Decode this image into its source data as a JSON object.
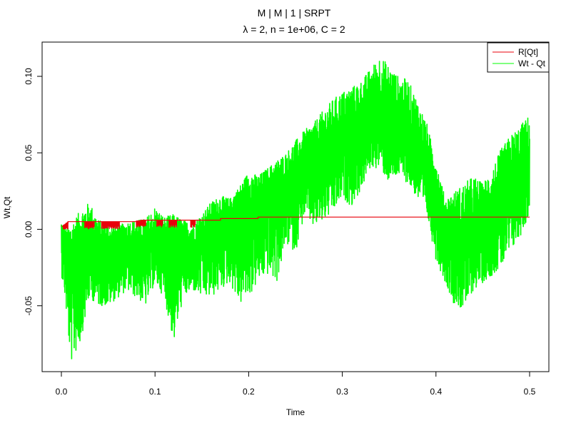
{
  "chart_data": {
    "type": "line",
    "title": "M | M | 1 | SRPT",
    "subtitle_prefix": "λ",
    "subtitle_rest": " = 2, n = 1e+06, C = 2",
    "xlabel": "Time",
    "ylabel": "Wt,Qt",
    "xlim": [
      0.0,
      0.5
    ],
    "ylim": [
      -0.087,
      0.114
    ],
    "x_ticks": [
      0.0,
      0.1,
      0.2,
      0.3,
      0.4,
      0.5
    ],
    "x_tick_labels": [
      "0.0",
      "0.1",
      "0.2",
      "0.3",
      "0.4",
      "0.5"
    ],
    "y_ticks": [
      -0.05,
      0.0,
      0.05,
      0.1
    ],
    "y_tick_labels": [
      "-0.05",
      "0.00",
      "0.05",
      "0.10"
    ],
    "grid": false,
    "legend_position": "top-right",
    "series": [
      {
        "name": "R[Qt]",
        "color": "#e8000b",
        "style": "step",
        "x": [
          0.0,
          0.005,
          0.007,
          0.03,
          0.045,
          0.07,
          0.085,
          0.1,
          0.12,
          0.135,
          0.15,
          0.17,
          0.2,
          0.21,
          0.25,
          0.3,
          0.4,
          0.5
        ],
        "y": [
          0.002,
          0.004,
          0.005,
          0.005,
          0.005,
          0.005,
          0.006,
          0.006,
          0.006,
          0.006,
          0.006,
          0.007,
          0.007,
          0.008,
          0.008,
          0.008,
          0.008,
          0.008
        ],
        "dip_intervals": [
          [
            0.002,
            0.007
          ],
          [
            0.025,
            0.035
          ],
          [
            0.043,
            0.062
          ],
          [
            0.08,
            0.09
          ],
          [
            0.102,
            0.108
          ],
          [
            0.115,
            0.123
          ],
          [
            0.138,
            0.143
          ]
        ]
      },
      {
        "name": "Wt - Qt",
        "color": "#00ff00",
        "style": "noisy-band",
        "x": [
          0.0,
          0.003,
          0.006,
          0.01,
          0.02,
          0.03,
          0.04,
          0.05,
          0.06,
          0.07,
          0.08,
          0.09,
          0.1,
          0.11,
          0.12,
          0.13,
          0.14,
          0.15,
          0.16,
          0.17,
          0.18,
          0.19,
          0.2,
          0.21,
          0.22,
          0.23,
          0.24,
          0.25,
          0.26,
          0.27,
          0.28,
          0.29,
          0.3,
          0.31,
          0.32,
          0.33,
          0.34,
          0.35,
          0.36,
          0.37,
          0.38,
          0.39,
          0.4,
          0.41,
          0.42,
          0.43,
          0.44,
          0.45,
          0.46,
          0.47,
          0.48,
          0.49,
          0.5
        ],
        "upper": [
          0.004,
          0.002,
          0.0,
          0.004,
          0.012,
          0.018,
          0.006,
          0.004,
          0.002,
          0.005,
          0.006,
          0.007,
          0.015,
          0.008,
          0.01,
          0.006,
          0.004,
          0.01,
          0.018,
          0.022,
          0.02,
          0.028,
          0.038,
          0.035,
          0.04,
          0.045,
          0.05,
          0.058,
          0.065,
          0.07,
          0.078,
          0.085,
          0.09,
          0.093,
          0.097,
          0.105,
          0.114,
          0.107,
          0.1,
          0.098,
          0.085,
          0.07,
          0.045,
          0.02,
          0.025,
          0.03,
          0.035,
          0.03,
          0.04,
          0.053,
          0.062,
          0.068,
          0.075
        ],
        "center": [
          0.0,
          -0.01,
          -0.02,
          -0.025,
          -0.015,
          -0.01,
          -0.015,
          -0.02,
          -0.015,
          -0.012,
          -0.01,
          -0.015,
          -0.01,
          -0.012,
          -0.012,
          -0.015,
          -0.012,
          -0.005,
          0.0,
          0.005,
          0.008,
          0.012,
          0.015,
          0.017,
          0.022,
          0.026,
          0.03,
          0.035,
          0.04,
          0.045,
          0.05,
          0.055,
          0.06,
          0.065,
          0.068,
          0.072,
          0.075,
          0.07,
          0.065,
          0.06,
          0.05,
          0.04,
          0.025,
          0.0,
          -0.005,
          -0.01,
          0.0,
          0.0,
          0.008,
          0.015,
          0.025,
          0.03,
          0.04
        ],
        "lower": [
          -0.03,
          -0.04,
          -0.06,
          -0.088,
          -0.075,
          -0.045,
          -0.05,
          -0.05,
          -0.045,
          -0.04,
          -0.045,
          -0.05,
          -0.035,
          -0.045,
          -0.075,
          -0.045,
          -0.04,
          -0.045,
          -0.045,
          -0.04,
          -0.035,
          -0.05,
          -0.045,
          -0.035,
          -0.03,
          -0.035,
          -0.01,
          -0.015,
          0.01,
          0.0,
          0.005,
          0.01,
          0.02,
          0.015,
          0.025,
          0.04,
          0.04,
          0.03,
          0.035,
          0.03,
          0.02,
          0.01,
          -0.02,
          -0.035,
          -0.05,
          -0.053,
          -0.04,
          -0.035,
          -0.03,
          -0.025,
          -0.015,
          -0.005,
          0.01
        ]
      }
    ]
  }
}
